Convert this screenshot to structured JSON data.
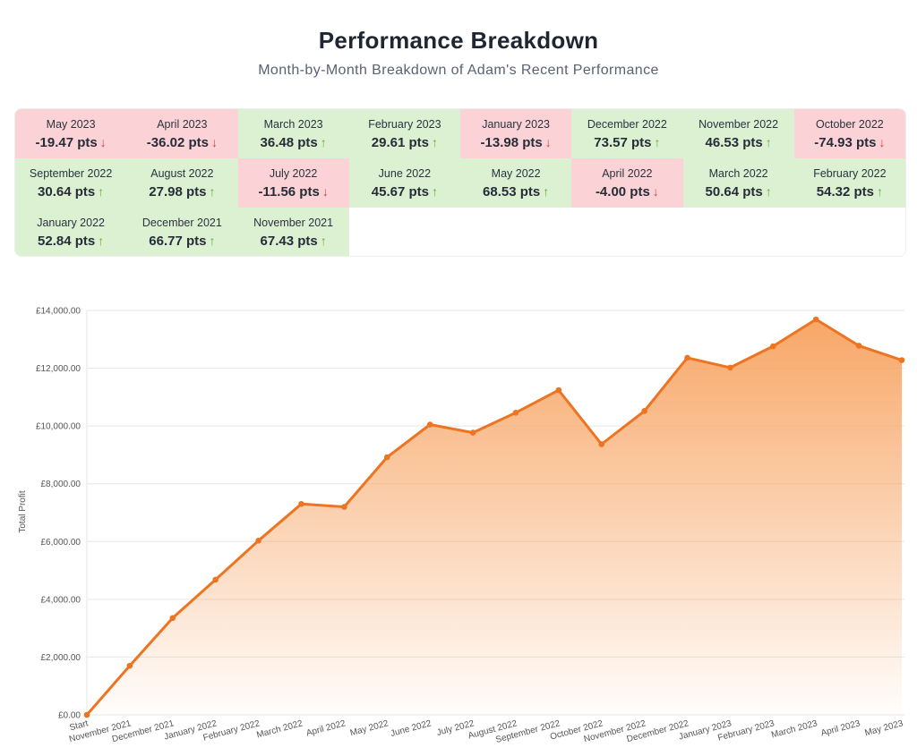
{
  "header": {
    "title": "Performance Breakdown",
    "subtitle": "Month-by-Month Breakdown of Adam's Recent Performance"
  },
  "breakdown": {
    "months": [
      {
        "month": "May 2023",
        "value": "-19.47 pts",
        "trend": "down"
      },
      {
        "month": "April 2023",
        "value": "-36.02 pts",
        "trend": "down"
      },
      {
        "month": "March 2023",
        "value": "36.48 pts",
        "trend": "up"
      },
      {
        "month": "February 2023",
        "value": "29.61 pts",
        "trend": "up"
      },
      {
        "month": "January 2023",
        "value": "-13.98 pts",
        "trend": "down"
      },
      {
        "month": "December 2022",
        "value": "73.57 pts",
        "trend": "up"
      },
      {
        "month": "November 2022",
        "value": "46.53 pts",
        "trend": "up"
      },
      {
        "month": "October 2022",
        "value": "-74.93 pts",
        "trend": "down"
      },
      {
        "month": "September 2022",
        "value": "30.64 pts",
        "trend": "up"
      },
      {
        "month": "August 2022",
        "value": "27.98 pts",
        "trend": "up"
      },
      {
        "month": "July 2022",
        "value": "-11.56 pts",
        "trend": "down"
      },
      {
        "month": "June 2022",
        "value": "45.67 pts",
        "trend": "up"
      },
      {
        "month": "May 2022",
        "value": "68.53 pts",
        "trend": "up"
      },
      {
        "month": "April 2022",
        "value": "-4.00 pts",
        "trend": "down"
      },
      {
        "month": "March 2022",
        "value": "50.64 pts",
        "trend": "up"
      },
      {
        "month": "February 2022",
        "value": "54.32 pts",
        "trend": "up"
      },
      {
        "month": "January 2022",
        "value": "52.84 pts",
        "trend": "up"
      },
      {
        "month": "December 2021",
        "value": "66.77 pts",
        "trend": "up"
      },
      {
        "month": "November 2021",
        "value": "67.43 pts",
        "trend": "up"
      }
    ],
    "arrows": {
      "up": "↑",
      "down": "↓"
    },
    "colors": {
      "positive_bg": "#dcf0d2",
      "negative_bg": "#fbd3d6",
      "up_arrow": "#5fb136",
      "down_arrow": "#e2393e"
    }
  },
  "chart_data": {
    "type": "area",
    "categories": [
      "Start",
      "November 2021",
      "December 2021",
      "January 2022",
      "February 2022",
      "March 2022",
      "April 2022",
      "May 2022",
      "June 2022",
      "July 2022",
      "August 2022",
      "September 2022",
      "October 2022",
      "November 2022",
      "December 2022",
      "January 2023",
      "February 2023",
      "March 2023",
      "April 2023",
      "May 2023"
    ],
    "series": [
      {
        "values": [
          0,
          1700,
          3350,
          4680,
          6030,
          7300,
          7200,
          8920,
          10050,
          9770,
          10460,
          11240,
          9370,
          10520,
          12360,
          12020,
          12760,
          13690,
          12780,
          12280
        ]
      }
    ],
    "ylabel": "Total Profit",
    "ylim": [
      0,
      14000
    ],
    "yticks": [
      0,
      2000,
      4000,
      6000,
      8000,
      10000,
      12000,
      14000
    ],
    "ytick_labels": [
      "£0.00",
      "£2,000.00",
      "£4,000.00",
      "£6,000.00",
      "£8,000.00",
      "£10,000.00",
      "£12,000.00",
      "£14,000.00"
    ],
    "grid": true,
    "line_color": "#ec7422",
    "fill_color": "#f7a25f"
  }
}
